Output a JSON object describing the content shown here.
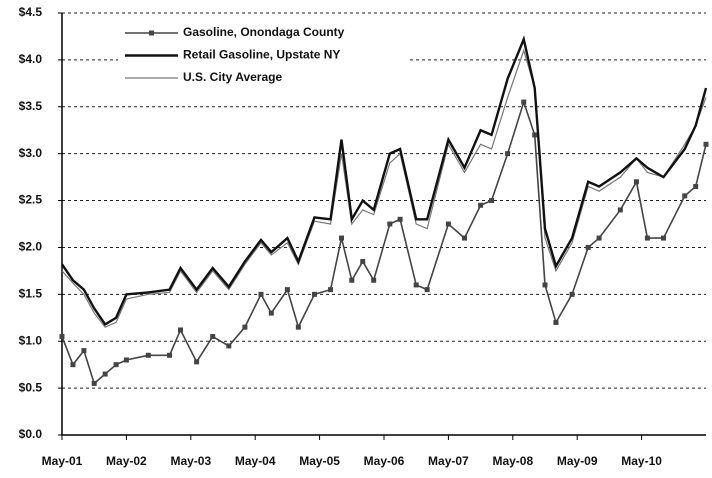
{
  "chart_data": {
    "type": "line",
    "x": [
      2001.33,
      2001.5,
      2001.67,
      2001.83,
      2002.0,
      2002.17,
      2002.33,
      2002.67,
      2003.0,
      2003.17,
      2003.42,
      2003.67,
      2003.92,
      2004.17,
      2004.42,
      2004.58,
      2004.83,
      2005.0,
      2005.25,
      2005.5,
      2005.67,
      2005.83,
      2006.0,
      2006.17,
      2006.42,
      2006.58,
      2006.83,
      2007.0,
      2007.33,
      2007.58,
      2007.83,
      2008.0,
      2008.25,
      2008.5,
      2008.67,
      2008.83,
      2009.0,
      2009.25,
      2009.5,
      2009.67,
      2010.0,
      2010.25,
      2010.42,
      2010.67,
      2011.0,
      2011.17,
      2011.33
    ],
    "series": [
      {
        "name": "Gasoline, Onondaga County",
        "color": "#444444",
        "markers": true,
        "values": [
          1.05,
          0.75,
          0.9,
          0.55,
          0.65,
          0.75,
          0.8,
          0.85,
          0.85,
          1.12,
          0.78,
          1.05,
          0.95,
          1.15,
          1.5,
          1.3,
          1.55,
          1.15,
          1.5,
          1.55,
          2.1,
          1.65,
          1.85,
          1.65,
          2.25,
          2.3,
          1.6,
          1.55,
          2.25,
          2.1,
          2.45,
          2.5,
          3.0,
          3.55,
          3.2,
          1.6,
          1.2,
          1.5,
          2.0,
          2.1,
          2.4,
          2.7,
          2.1,
          2.1,
          2.55,
          2.65,
          3.1
        ]
      },
      {
        "name": "Retail Gasoline, Upstate NY",
        "color": "#111111",
        "markers": false,
        "values": [
          1.82,
          1.65,
          1.55,
          1.35,
          1.18,
          1.25,
          1.5,
          1.52,
          1.55,
          1.78,
          1.55,
          1.78,
          1.58,
          1.85,
          2.08,
          1.95,
          2.1,
          1.85,
          2.32,
          2.3,
          3.15,
          2.3,
          2.5,
          2.4,
          3.0,
          3.05,
          2.3,
          2.3,
          3.15,
          2.85,
          3.25,
          3.2,
          3.8,
          4.22,
          3.7,
          2.2,
          1.8,
          2.1,
          2.7,
          2.65,
          2.8,
          2.95,
          2.85,
          2.75,
          3.05,
          3.3,
          3.7
        ]
      },
      {
        "name": "U.S. City Average",
        "color": "#777777",
        "markers": false,
        "values": [
          1.75,
          1.62,
          1.5,
          1.3,
          1.15,
          1.2,
          1.45,
          1.5,
          1.52,
          1.75,
          1.52,
          1.75,
          1.55,
          1.82,
          2.05,
          1.92,
          2.05,
          1.82,
          2.28,
          2.25,
          3.0,
          2.25,
          2.4,
          2.35,
          2.9,
          3.0,
          2.25,
          2.2,
          3.1,
          2.8,
          3.1,
          3.05,
          3.6,
          4.1,
          3.7,
          2.1,
          1.75,
          2.05,
          2.65,
          2.6,
          2.75,
          2.95,
          2.8,
          2.75,
          3.1,
          3.3,
          3.6
        ]
      }
    ],
    "xlim": [
      2001.33,
      2011.33
    ],
    "xticks": [
      {
        "value": 2001.33,
        "label": "May-01"
      },
      {
        "value": 2002.33,
        "label": "May-02"
      },
      {
        "value": 2003.33,
        "label": "May-03"
      },
      {
        "value": 2004.33,
        "label": "May-04"
      },
      {
        "value": 2005.33,
        "label": "May-05"
      },
      {
        "value": 2006.33,
        "label": "May-06"
      },
      {
        "value": 2007.33,
        "label": "May-07"
      },
      {
        "value": 2008.33,
        "label": "May-08"
      },
      {
        "value": 2009.33,
        "label": "May-09"
      },
      {
        "value": 2010.33,
        "label": "May-10"
      }
    ],
    "ylim": [
      0,
      4.5
    ],
    "yticks": [
      {
        "value": 0,
        "label": "$0.0"
      },
      {
        "value": 0.5,
        "label": "$0.5"
      },
      {
        "value": 1,
        "label": "$1.0"
      },
      {
        "value": 1.5,
        "label": "$1.5"
      },
      {
        "value": 2,
        "label": "$2.0"
      },
      {
        "value": 2.5,
        "label": "$2.5"
      },
      {
        "value": 3,
        "label": "$3.0"
      },
      {
        "value": 3.5,
        "label": "$3.5"
      },
      {
        "value": 4,
        "label": "$4.0"
      },
      {
        "value": 4.5,
        "label": "$4.5"
      }
    ],
    "grid": true,
    "legend": "top-left"
  }
}
